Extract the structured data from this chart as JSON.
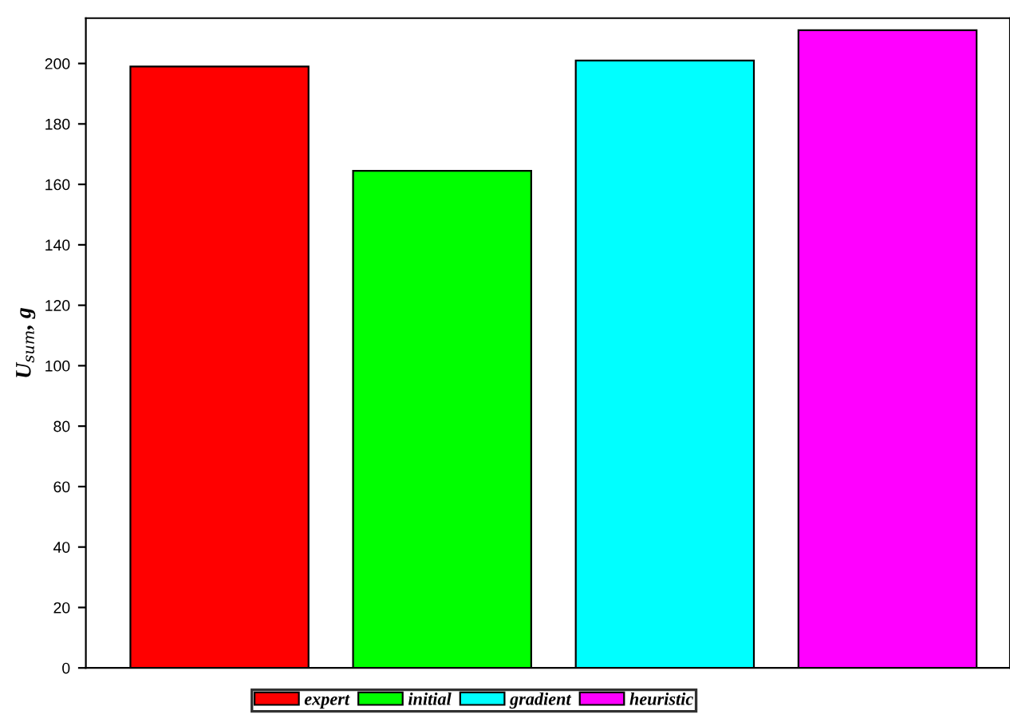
{
  "chart_data": {
    "type": "bar",
    "ylabel": "U$_{sum}$, g",
    "categories": [
      null,
      null,
      null,
      null
    ],
    "series": [
      {
        "name": "expert",
        "color": "#ff0000",
        "values": [
          199,
          null,
          null,
          null
        ]
      },
      {
        "name": "initial",
        "color": "#00ff00",
        "values": [
          null,
          164.5,
          null,
          null
        ]
      },
      {
        "name": "gradient",
        "color": "#00ffff",
        "values": [
          null,
          null,
          201,
          null
        ]
      },
      {
        "name": "heuristic",
        "color": "#ff00ff",
        "values": [
          null,
          null,
          null,
          211
        ]
      }
    ],
    "ylim": [
      0,
      215
    ],
    "yticks": [
      0,
      20,
      40,
      60,
      80,
      100,
      120,
      140,
      160,
      180,
      200
    ],
    "grid": false,
    "legend": "bottom",
    "tick_labels": "y"
  }
}
